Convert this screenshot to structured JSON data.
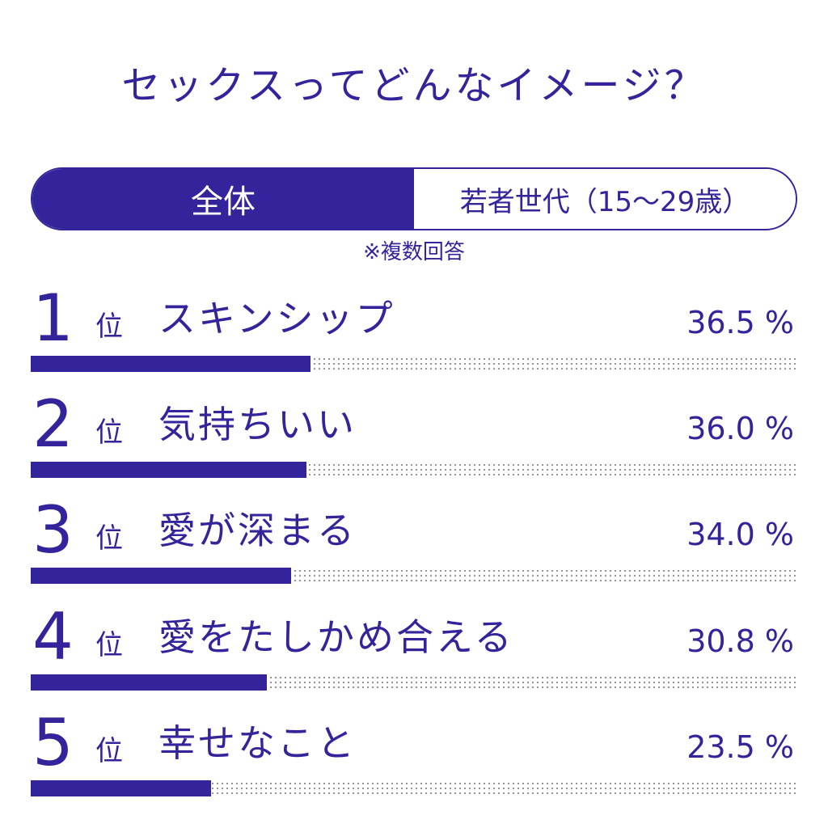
{
  "title": "セックスってどんなイメージ？",
  "tabs": [
    {
      "label": "全体",
      "active": true
    },
    {
      "label": "若者世代（15〜29歳）",
      "active": false
    }
  ],
  "note": "※複数回答",
  "rank_suffix": "位",
  "colors": {
    "accent": "#34249c",
    "dots": "#8a8a8a"
  },
  "chart_data": {
    "type": "bar",
    "orientation": "horizontal",
    "title": "セックスってどんなイメージ？",
    "unit": "%",
    "xlim": [
      0,
      100
    ],
    "categories": [
      "スキンシップ",
      "気持ちいい",
      "愛が深まる",
      "愛をたしかめ合える",
      "幸せなこと"
    ],
    "values": [
      36.5,
      36.0,
      34.0,
      30.8,
      23.5
    ],
    "ranks": [
      "1",
      "2",
      "3",
      "4",
      "5"
    ],
    "value_labels": [
      "36.5 %",
      "36.0 %",
      "34.0 %",
      "30.8 %",
      "23.5 %"
    ]
  }
}
